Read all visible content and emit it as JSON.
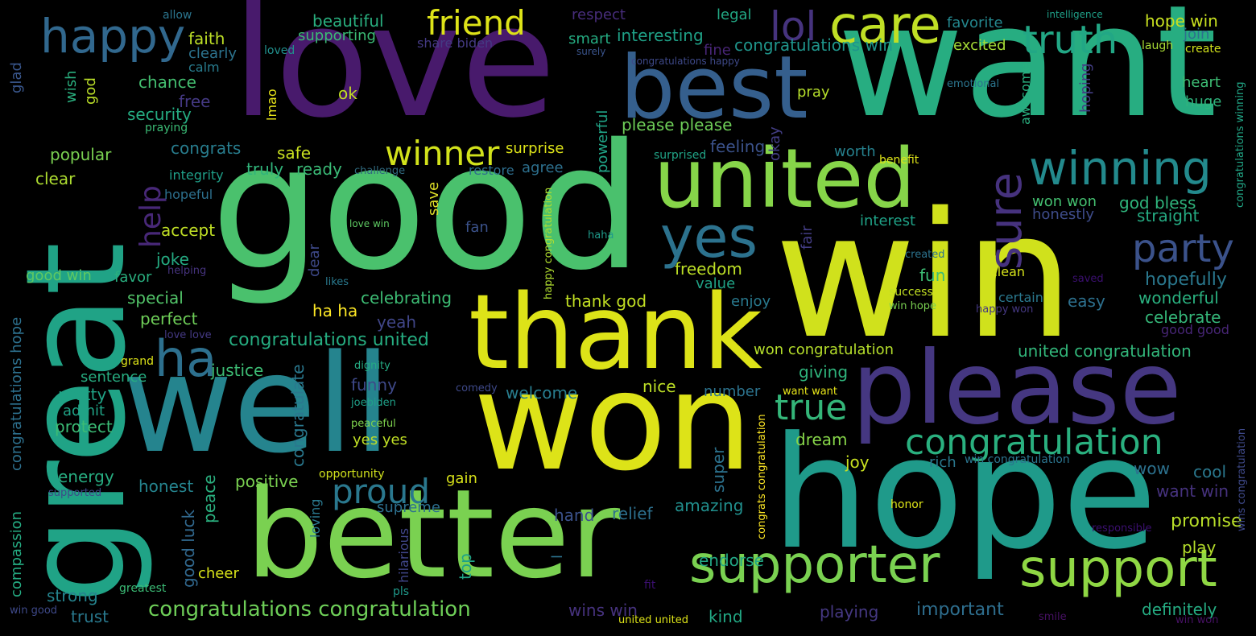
{
  "words": {
    "great": {
      "text": "great",
      "color": "#20a386"
    },
    "love": {
      "text": "love",
      "color": "#481a6c"
    },
    "good": {
      "text": "good",
      "color": "#4ac16d"
    },
    "want": {
      "text": "want",
      "color": "#27ad81"
    },
    "win": {
      "text": "win",
      "color": "#d0e11c"
    },
    "hope": {
      "text": "hope",
      "color": "#1f9a8a"
    },
    "well": {
      "text": "well",
      "color": "#25848e"
    },
    "won": {
      "text": "won",
      "color": "#dde318"
    },
    "better": {
      "text": "better",
      "color": "#7ad151"
    },
    "please": {
      "text": "please",
      "color": "#453781"
    },
    "thank": {
      "text": "thank",
      "color": "#dde318"
    },
    "best": {
      "text": "best",
      "color": "#355f8d"
    },
    "united": {
      "text": "united",
      "color": "#86d549"
    },
    "supporter": {
      "text": "supporter",
      "color": "#7ad151"
    },
    "support": {
      "text": "support",
      "color": "#8fd744"
    },
    "congratulation": {
      "text": "congratulation",
      "color": "#2ab07f"
    },
    "winning": {
      "text": "winning",
      "color": "#238a8d"
    },
    "party": {
      "text": "party",
      "color": "#3b528b"
    },
    "yes": {
      "text": "yes",
      "color": "#2c728e"
    },
    "sure": {
      "text": "sure",
      "color": "#46327e"
    },
    "care": {
      "text": "care",
      "color": "#c0df25"
    },
    "truth": {
      "text": "truth",
      "color": "#22a785"
    },
    "happy": {
      "text": "happy",
      "color": "#31688e"
    },
    "friend": {
      "text": "friend",
      "color": "#dde318"
    },
    "winner": {
      "text": "winner",
      "color": "#d2e21b"
    },
    "ha": {
      "text": "ha",
      "color": "#2d708e"
    },
    "proud": {
      "text": "proud",
      "color": "#2a788e"
    },
    "true": {
      "text": "true",
      "color": "#34b679"
    },
    "lol": {
      "text": "lol",
      "color": "#46337e"
    },
    "help": {
      "text": "help",
      "color": "#482878"
    },
    "congratulations_congratulation": {
      "text": "congratulations congratulation",
      "color": "#6ece58"
    },
    "congratulations_united": {
      "text": "congratulations united",
      "color": "#26ad81"
    },
    "united_congratulation": {
      "text": "united congratulation",
      "color": "#32b67a"
    },
    "won_congratulation": {
      "text": "won congratulation",
      "color": "#b5de2b"
    },
    "congratulations_win": {
      "text": "congratulations win",
      "color": "#1f958b"
    },
    "please_please": {
      "text": "please please",
      "color": "#6ece58"
    },
    "hope_win": {
      "text": "hope win",
      "color": "#c8e020"
    },
    "hopefully": {
      "text": "hopefully",
      "color": "#2a788e"
    },
    "wonderful": {
      "text": "wonderful",
      "color": "#2ab07f"
    },
    "celebrate": {
      "text": "celebrate",
      "color": "#35b779"
    },
    "celebrating": {
      "text": "celebrating",
      "color": "#3dbc74"
    },
    "important": {
      "text": "important",
      "color": "#2e6e8e"
    },
    "definitely": {
      "text": "definitely",
      "color": "#25ac82"
    },
    "promise": {
      "text": "promise",
      "color": "#b8de29"
    },
    "interesting": {
      "text": "interesting",
      "color": "#1fa187"
    },
    "supporting": {
      "text": "supporting",
      "color": "#3bbb75"
    },
    "beautiful": {
      "text": "beautiful",
      "color": "#29af7f"
    },
    "respect": {
      "text": "respect",
      "color": "#472d7b"
    },
    "legal": {
      "text": "legal",
      "color": "#22a884"
    },
    "favorite": {
      "text": "favorite",
      "color": "#24878e"
    },
    "join": {
      "text": "join",
      "color": "#2d708e"
    },
    "laugh": {
      "text": "laugh",
      "color": "#a8db34"
    },
    "create": {
      "text": "create",
      "color": "#d2e21b"
    },
    "intelligence": {
      "text": "intelligence",
      "color": "#1fa088"
    },
    "allow": {
      "text": "allow",
      "color": "#2b758e"
    },
    "faith": {
      "text": "faith",
      "color": "#bddf26"
    },
    "clearly": {
      "text": "clearly",
      "color": "#2c738e"
    },
    "calm": {
      "text": "calm",
      "color": "#287c8e"
    },
    "loved": {
      "text": "loved",
      "color": "#21908d"
    },
    "share_biden": {
      "text": "share biden",
      "color": "#443a83"
    },
    "surely": {
      "text": "surely",
      "color": "#3a548c"
    },
    "congratulations_happy": {
      "text": "congratulations happy",
      "color": "#3e4989"
    },
    "smart": {
      "text": "smart",
      "color": "#25ac82"
    },
    "fine": {
      "text": "fine",
      "color": "#482576"
    },
    "excited": {
      "text": "excited",
      "color": "#a5db36"
    },
    "heart": {
      "text": "heart",
      "color": "#3dbc74"
    },
    "huge": {
      "text": "huge",
      "color": "#2fb47c"
    },
    "emotional": {
      "text": "emotional",
      "color": "#2b758e"
    },
    "awesome": {
      "text": "awesome",
      "color": "#29af7f"
    },
    "hoping": {
      "text": "hoping",
      "color": "#433e85"
    },
    "congratulations_winning": {
      "text": "congratulations winning",
      "color": "#21a585"
    },
    "pray": {
      "text": "pray",
      "color": "#b5de2b"
    },
    "chance": {
      "text": "chance",
      "color": "#44bf70"
    },
    "security": {
      "text": "security",
      "color": "#25ac82"
    },
    "free": {
      "text": "free",
      "color": "#443983"
    },
    "praying": {
      "text": "praying",
      "color": "#3bbb75"
    },
    "wish": {
      "text": "wish",
      "color": "#2ab07f"
    },
    "god": {
      "text": "god",
      "color": "#bade28"
    },
    "glad": {
      "text": "glad",
      "color": "#39568c"
    },
    "lmao": {
      "text": "lmao",
      "color": "#e7e419"
    },
    "ok": {
      "text": "ok",
      "color": "#c2df23"
    },
    "popular": {
      "text": "popular",
      "color": "#7ad151"
    },
    "congrats": {
      "text": "congrats",
      "color": "#287d8e"
    },
    "safe": {
      "text": "safe",
      "color": "#c8e020"
    },
    "surprise": {
      "text": "surprise",
      "color": "#dde318"
    },
    "surprised": {
      "text": "surprised",
      "color": "#20a386"
    },
    "feeling": {
      "text": "feeling",
      "color": "#3b528b"
    },
    "powerful": {
      "text": "powerful",
      "color": "#20a386"
    },
    "okay": {
      "text": "okay",
      "color": "#433e85"
    },
    "worth": {
      "text": "worth",
      "color": "#26818e"
    },
    "benefit": {
      "text": "benefit",
      "color": "#dde318"
    },
    "clear": {
      "text": "clear",
      "color": "#addc30"
    },
    "integrity": {
      "text": "integrity",
      "color": "#1f9f88"
    },
    "truly": {
      "text": "truly",
      "color": "#31b57b"
    },
    "ready": {
      "text": "ready",
      "color": "#3aba76"
    },
    "challenge": {
      "text": "challenge",
      "color": "#30697e"
    },
    "restore": {
      "text": "restore",
      "color": "#2e6e8e"
    },
    "agree": {
      "text": "agree",
      "color": "#2d708e"
    },
    "hopeful": {
      "text": "hopeful",
      "color": "#2d708e"
    },
    "save": {
      "text": "save",
      "color": "#ddde28"
    },
    "accept": {
      "text": "accept",
      "color": "#c0df25"
    },
    "love_win": {
      "text": "love win",
      "color": "#5ec962"
    },
    "fan": {
      "text": "fan",
      "color": "#3b528b"
    },
    "haha": {
      "text": "haha",
      "color": "#1f9a8a"
    },
    "interest": {
      "text": "interest",
      "color": "#1fa287"
    },
    "fair": {
      "text": "fair",
      "color": "#433d84"
    },
    "god_bless": {
      "text": "god bless",
      "color": "#2fb47c"
    },
    "won_won": {
      "text": "won won",
      "color": "#44bf70"
    },
    "honestly": {
      "text": "honestly",
      "color": "#3e4c8a"
    },
    "straight": {
      "text": "straight",
      "color": "#25ab82"
    },
    "joke": {
      "text": "joke",
      "color": "#25ab82"
    },
    "helping": {
      "text": "helping",
      "color": "#46337e"
    },
    "good_win": {
      "text": "good win",
      "color": "#5ec962"
    },
    "favor": {
      "text": "favor",
      "color": "#29af7f"
    },
    "dear": {
      "text": "dear",
      "color": "#3e4989"
    },
    "likes": {
      "text": "likes",
      "color": "#29798e"
    },
    "freedom": {
      "text": "freedom",
      "color": "#bddf26"
    },
    "value": {
      "text": "value",
      "color": "#20a386"
    },
    "happy_congratulation": {
      "text": "happy congratulation",
      "color": "#b0dd2f"
    },
    "created": {
      "text": "created",
      "color": "#2c738e"
    },
    "fun": {
      "text": "fun",
      "color": "#3dbc74"
    },
    "clean": {
      "text": "clean",
      "color": "#d5e21a"
    },
    "saved": {
      "text": "saved",
      "color": "#3b0f70"
    },
    "special": {
      "text": "special",
      "color": "#52c569"
    },
    "thank_god": {
      "text": "thank god",
      "color": "#c2df23"
    },
    "success": {
      "text": "success",
      "color": "#c2df23"
    },
    "certain": {
      "text": "certain",
      "color": "#2a788e"
    },
    "easy": {
      "text": "easy",
      "color": "#2d708e"
    },
    "enjoy": {
      "text": "enjoy",
      "color": "#29798e"
    },
    "win_hope": {
      "text": "win hope",
      "color": "#7ad151"
    },
    "happy_won": {
      "text": "happy won",
      "color": "#453882"
    },
    "perfect": {
      "text": "perfect",
      "color": "#6ece58"
    },
    "ha_ha": {
      "text": "ha ha",
      "color": "#fde725"
    },
    "yeah": {
      "text": "yeah",
      "color": "#404688"
    },
    "good_good": {
      "text": "good good",
      "color": "#482677"
    },
    "love_love": {
      "text": "love love",
      "color": "#443983"
    },
    "grand": {
      "text": "grand",
      "color": "#dde318"
    },
    "justice": {
      "text": "justice",
      "color": "#3dbc74"
    },
    "dignity": {
      "text": "dignity",
      "color": "#25ab82"
    },
    "sentence": {
      "text": "sentence",
      "color": "#27ad81"
    },
    "congratulations_hope": {
      "text": "congratulations hope",
      "color": "#2d708e"
    },
    "congratulate": {
      "text": "congratulate",
      "color": "#2a788e"
    },
    "funny": {
      "text": "funny",
      "color": "#3e4989"
    },
    "comedy": {
      "text": "comedy",
      "color": "#3e4989"
    },
    "giving": {
      "text": "giving",
      "color": "#2fb47c"
    },
    "want_want": {
      "text": "want want",
      "color": "#e7e419"
    },
    "pretty": {
      "text": "pretty",
      "color": "#20a386"
    },
    "joebiden": {
      "text": "joebiden",
      "color": "#1fa088"
    },
    "welcome": {
      "text": "welcome",
      "color": "#287d8e"
    },
    "nice": {
      "text": "nice",
      "color": "#bddf26"
    },
    "number": {
      "text": "number",
      "color": "#2c738e"
    },
    "admit": {
      "text": "admit",
      "color": "#20a386"
    },
    "peaceful": {
      "text": "peaceful",
      "color": "#7fd34e"
    },
    "protect": {
      "text": "protect",
      "color": "#3bbb75"
    },
    "yes_yes": {
      "text": "yes yes",
      "color": "#c0df25"
    },
    "dream": {
      "text": "dream",
      "color": "#86d549"
    },
    "congrats_congratulation": {
      "text": "congrats congratulation",
      "color": "#fde725"
    },
    "wins_congratulation": {
      "text": "wins congratulation",
      "color": "#3e4989"
    },
    "energy": {
      "text": "energy",
      "color": "#27ad81"
    },
    "opportunity": {
      "text": "opportunity",
      "color": "#d0e11c"
    },
    "positive": {
      "text": "positive",
      "color": "#7ad151"
    },
    "gain": {
      "text": "gain",
      "color": "#d8e219"
    },
    "rich": {
      "text": "rich",
      "color": "#2a788e"
    },
    "joy": {
      "text": "joy",
      "color": "#c8e020"
    },
    "win_congratulation": {
      "text": "win congratulation",
      "color": "#2b748e"
    },
    "super": {
      "text": "super",
      "color": "#2c728e"
    },
    "wow": {
      "text": "wow",
      "color": "#2c718e"
    },
    "cool": {
      "text": "cool",
      "color": "#2a788e"
    },
    "honest": {
      "text": "honest",
      "color": "#25848e"
    },
    "peace": {
      "text": "peace",
      "color": "#2ab07f"
    },
    "supreme": {
      "text": "supreme",
      "color": "#2d708e"
    },
    "supported": {
      "text": "supported",
      "color": "#3e4989"
    },
    "want_win": {
      "text": "want win",
      "color": "#46327e"
    },
    "compassion": {
      "text": "compassion",
      "color": "#25ab82"
    },
    "loving": {
      "text": "loving",
      "color": "#2a788e"
    },
    "hand": {
      "text": "hand",
      "color": "#3b528b"
    },
    "relief": {
      "text": "relief",
      "color": "#2d708e"
    },
    "amazing": {
      "text": "amazing",
      "color": "#218f8d"
    },
    "honor": {
      "text": "honor",
      "color": "#dde318"
    },
    "responsible": {
      "text": "responsible",
      "color": "#3b0f70"
    },
    "play": {
      "text": "play",
      "color": "#b5de2b"
    },
    "good_luck": {
      "text": "good luck",
      "color": "#31688e"
    },
    "cheer": {
      "text": "cheer",
      "color": "#d8e219"
    },
    "hilarious": {
      "text": "hilarious",
      "color": "#404688"
    },
    "top": {
      "text": "top",
      "color": "#20a386"
    },
    "l": {
      "text": "l",
      "color": "#2c728e"
    },
    "endorse": {
      "text": "endorse",
      "color": "#22a785"
    },
    "strong": {
      "text": "strong",
      "color": "#25848e"
    },
    "greatest": {
      "text": "greatest",
      "color": "#3bbb75"
    },
    "pls": {
      "text": "pls",
      "color": "#1f998a"
    },
    "fit": {
      "text": "fit",
      "color": "#3b0f70"
    },
    "trust": {
      "text": "trust",
      "color": "#29798e"
    },
    "wins_win": {
      "text": "wins win",
      "color": "#46327e"
    },
    "kind": {
      "text": "kind",
      "color": "#22a884"
    },
    "playing": {
      "text": "playing",
      "color": "#453882"
    },
    "united_united": {
      "text": "united united",
      "color": "#dde318"
    },
    "smile": {
      "text": "smile",
      "color": "#471164"
    },
    "win_won": {
      "text": "win won",
      "color": "#471164"
    },
    "win_good": {
      "text": "win good",
      "color": "#3e4989"
    }
  }
}
